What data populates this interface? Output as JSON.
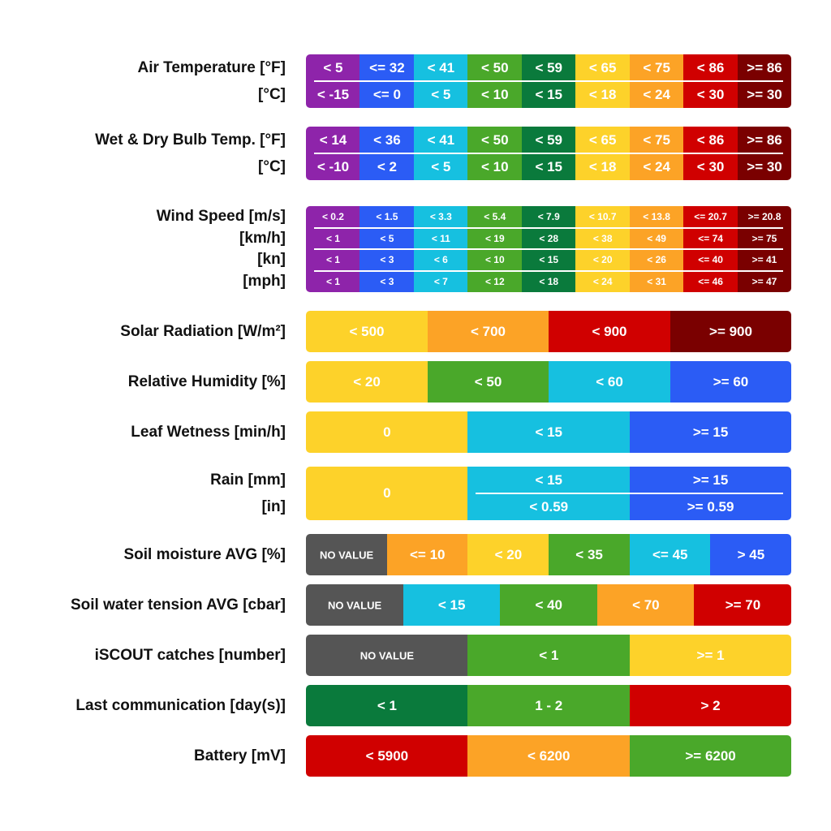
{
  "rows": [
    {
      "labels": [
        "Air Temperature [°F]",
        "[°C]"
      ],
      "segments": [
        {
          "color": "#8e24aa",
          "texts": [
            "< 5",
            "< -15"
          ]
        },
        {
          "color": "#2b5cf5",
          "texts": [
            "<= 32",
            "<= 0"
          ]
        },
        {
          "color": "#16c0e0",
          "texts": [
            "< 41",
            "< 5"
          ]
        },
        {
          "color": "#4aa82a",
          "texts": [
            "< 50",
            "< 10"
          ]
        },
        {
          "color": "#0a7a3c",
          "texts": [
            "< 59",
            "< 15"
          ]
        },
        {
          "color": "#fdd22a",
          "texts": [
            "< 65",
            "< 18"
          ]
        },
        {
          "color": "#fca326",
          "texts": [
            "< 75",
            "< 24"
          ]
        },
        {
          "color": "#d00000",
          "texts": [
            "< 86",
            "< 30"
          ]
        },
        {
          "color": "#7a0000",
          "texts": [
            ">= 86",
            ">= 30"
          ]
        }
      ]
    },
    {
      "labels": [
        "Wet & Dry Bulb Temp. [°F]",
        "[°C]"
      ],
      "segments": [
        {
          "color": "#8e24aa",
          "texts": [
            "< 14",
            "< -10"
          ]
        },
        {
          "color": "#2b5cf5",
          "texts": [
            "< 36",
            "< 2"
          ]
        },
        {
          "color": "#16c0e0",
          "texts": [
            "< 41",
            "< 5"
          ]
        },
        {
          "color": "#4aa82a",
          "texts": [
            "< 50",
            "< 10"
          ]
        },
        {
          "color": "#0a7a3c",
          "texts": [
            "< 59",
            "< 15"
          ]
        },
        {
          "color": "#fdd22a",
          "texts": [
            "< 65",
            "< 18"
          ]
        },
        {
          "color": "#fca326",
          "texts": [
            "< 75",
            "< 24"
          ]
        },
        {
          "color": "#d00000",
          "texts": [
            "< 86",
            "< 30"
          ]
        },
        {
          "color": "#7a0000",
          "texts": [
            ">= 86",
            ">= 30"
          ]
        }
      ]
    },
    {
      "labels": [
        "Wind Speed [m/s]",
        "[km/h]",
        "[kn]",
        "[mph]"
      ],
      "segments": [
        {
          "color": "#8e24aa",
          "texts": [
            "< 0.2",
            "< 1",
            "< 1",
            "< 1"
          ]
        },
        {
          "color": "#2b5cf5",
          "texts": [
            "< 1.5",
            "< 5",
            "< 3",
            "< 3"
          ]
        },
        {
          "color": "#16c0e0",
          "texts": [
            "< 3.3",
            "< 11",
            "< 6",
            "< 7"
          ]
        },
        {
          "color": "#4aa82a",
          "texts": [
            "< 5.4",
            "< 19",
            "< 10",
            "< 12"
          ]
        },
        {
          "color": "#0a7a3c",
          "texts": [
            "< 7.9",
            "< 28",
            "< 15",
            "< 18"
          ]
        },
        {
          "color": "#fdd22a",
          "texts": [
            "< 10.7",
            "< 38",
            "< 20",
            "< 24"
          ]
        },
        {
          "color": "#fca326",
          "texts": [
            "< 13.8",
            "< 49",
            "< 26",
            "< 31"
          ]
        },
        {
          "color": "#d00000",
          "texts": [
            "<= 20.7",
            "<= 74",
            "<= 40",
            "<= 46"
          ]
        },
        {
          "color": "#7a0000",
          "texts": [
            ">= 20.8",
            ">= 75",
            ">= 41",
            ">= 47"
          ]
        }
      ]
    },
    {
      "labels": [
        "Solar Radiation [W/m²]"
      ],
      "segments": [
        {
          "color": "#fdd22a",
          "texts": [
            "< 500"
          ]
        },
        {
          "color": "#fca326",
          "texts": [
            "< 700"
          ]
        },
        {
          "color": "#d00000",
          "texts": [
            "< 900"
          ]
        },
        {
          "color": "#7a0000",
          "texts": [
            ">= 900"
          ]
        }
      ]
    },
    {
      "labels": [
        "Relative Humidity [%]"
      ],
      "segments": [
        {
          "color": "#fdd22a",
          "texts": [
            "< 20"
          ]
        },
        {
          "color": "#4aa82a",
          "texts": [
            "< 50"
          ]
        },
        {
          "color": "#16c0e0",
          "texts": [
            "< 60"
          ]
        },
        {
          "color": "#2b5cf5",
          "texts": [
            ">= 60"
          ]
        }
      ]
    },
    {
      "labels": [
        "Leaf Wetness [min/h]"
      ],
      "segments": [
        {
          "color": "#fdd22a",
          "texts": [
            "0"
          ]
        },
        {
          "color": "#16c0e0",
          "texts": [
            "< 15"
          ]
        },
        {
          "color": "#2b5cf5",
          "texts": [
            ">= 15"
          ]
        }
      ]
    },
    {
      "labels": [
        "Rain [mm]",
        "[in]"
      ],
      "segments": [
        {
          "color": "#fdd22a",
          "texts": [
            "0"
          ]
        },
        {
          "color": "#16c0e0",
          "texts": [
            "< 15",
            "< 0.59"
          ]
        },
        {
          "color": "#2b5cf5",
          "texts": [
            ">= 15",
            ">= 0.59"
          ]
        }
      ]
    },
    {
      "labels": [
        "Soil moisture AVG [%]"
      ],
      "segments": [
        {
          "color": "#555555",
          "texts": [
            "NO VALUE"
          ]
        },
        {
          "color": "#fca326",
          "texts": [
            "<= 10"
          ]
        },
        {
          "color": "#fdd22a",
          "texts": [
            "< 20"
          ]
        },
        {
          "color": "#4aa82a",
          "texts": [
            "< 35"
          ]
        },
        {
          "color": "#16c0e0",
          "texts": [
            "<= 45"
          ]
        },
        {
          "color": "#2b5cf5",
          "texts": [
            "> 45"
          ]
        }
      ]
    },
    {
      "labels": [
        "Soil water tension AVG [cbar]"
      ],
      "segments": [
        {
          "color": "#555555",
          "texts": [
            "NO VALUE"
          ]
        },
        {
          "color": "#16c0e0",
          "texts": [
            "< 15"
          ]
        },
        {
          "color": "#4aa82a",
          "texts": [
            "< 40"
          ]
        },
        {
          "color": "#fca326",
          "texts": [
            "< 70"
          ]
        },
        {
          "color": "#d00000",
          "texts": [
            ">= 70"
          ]
        }
      ]
    },
    {
      "labels": [
        "iSCOUT catches [number]"
      ],
      "segments": [
        {
          "color": "#555555",
          "texts": [
            "NO VALUE"
          ]
        },
        {
          "color": "#4aa82a",
          "texts": [
            "< 1"
          ]
        },
        {
          "color": "#fdd22a",
          "texts": [
            ">= 1"
          ]
        }
      ]
    },
    {
      "labels": [
        "Last communication [day(s)]"
      ],
      "segments": [
        {
          "color": "#0a7a3c",
          "texts": [
            "< 1"
          ]
        },
        {
          "color": "#4aa82a",
          "texts": [
            "1 - 2"
          ]
        },
        {
          "color": "#d00000",
          "texts": [
            "> 2"
          ]
        }
      ]
    },
    {
      "labels": [
        "Battery [mV]"
      ],
      "segments": [
        {
          "color": "#d00000",
          "texts": [
            "< 5900"
          ]
        },
        {
          "color": "#fca326",
          "texts": [
            "< 6200"
          ]
        },
        {
          "color": "#4aa82a",
          "texts": [
            ">= 6200"
          ]
        }
      ]
    }
  ]
}
